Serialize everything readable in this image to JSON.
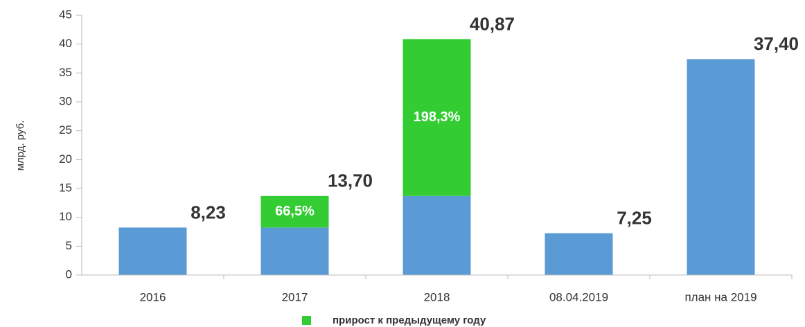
{
  "chart_data": {
    "type": "stacked_bar",
    "y_label": "млрд. руб.",
    "categories": [
      "2016",
      "2017",
      "2018",
      "08.04.2019",
      "план на 2019"
    ],
    "series": [
      {
        "color": "#5b9bd5",
        "values": [
          8.23,
          8.23,
          13.7,
          7.25,
          37.4
        ]
      },
      {
        "name": "прирост к предыдущему году",
        "color": "#33cc33",
        "values": [
          null,
          5.47,
          27.17,
          null,
          null
        ],
        "annotations": [
          null,
          "66,5%",
          "198,3%",
          null,
          null
        ]
      }
    ],
    "totals": [
      8.23,
      13.7,
      40.87,
      7.25,
      37.4
    ],
    "total_labels": [
      "8,23",
      "13,70",
      "40,87",
      "7,25",
      "37,40"
    ],
    "ylim": [
      0,
      45
    ],
    "yticks": [
      0,
      5,
      10,
      15,
      20,
      25,
      30,
      35,
      40,
      45
    ],
    "grid": false,
    "legend": "bottom"
  }
}
